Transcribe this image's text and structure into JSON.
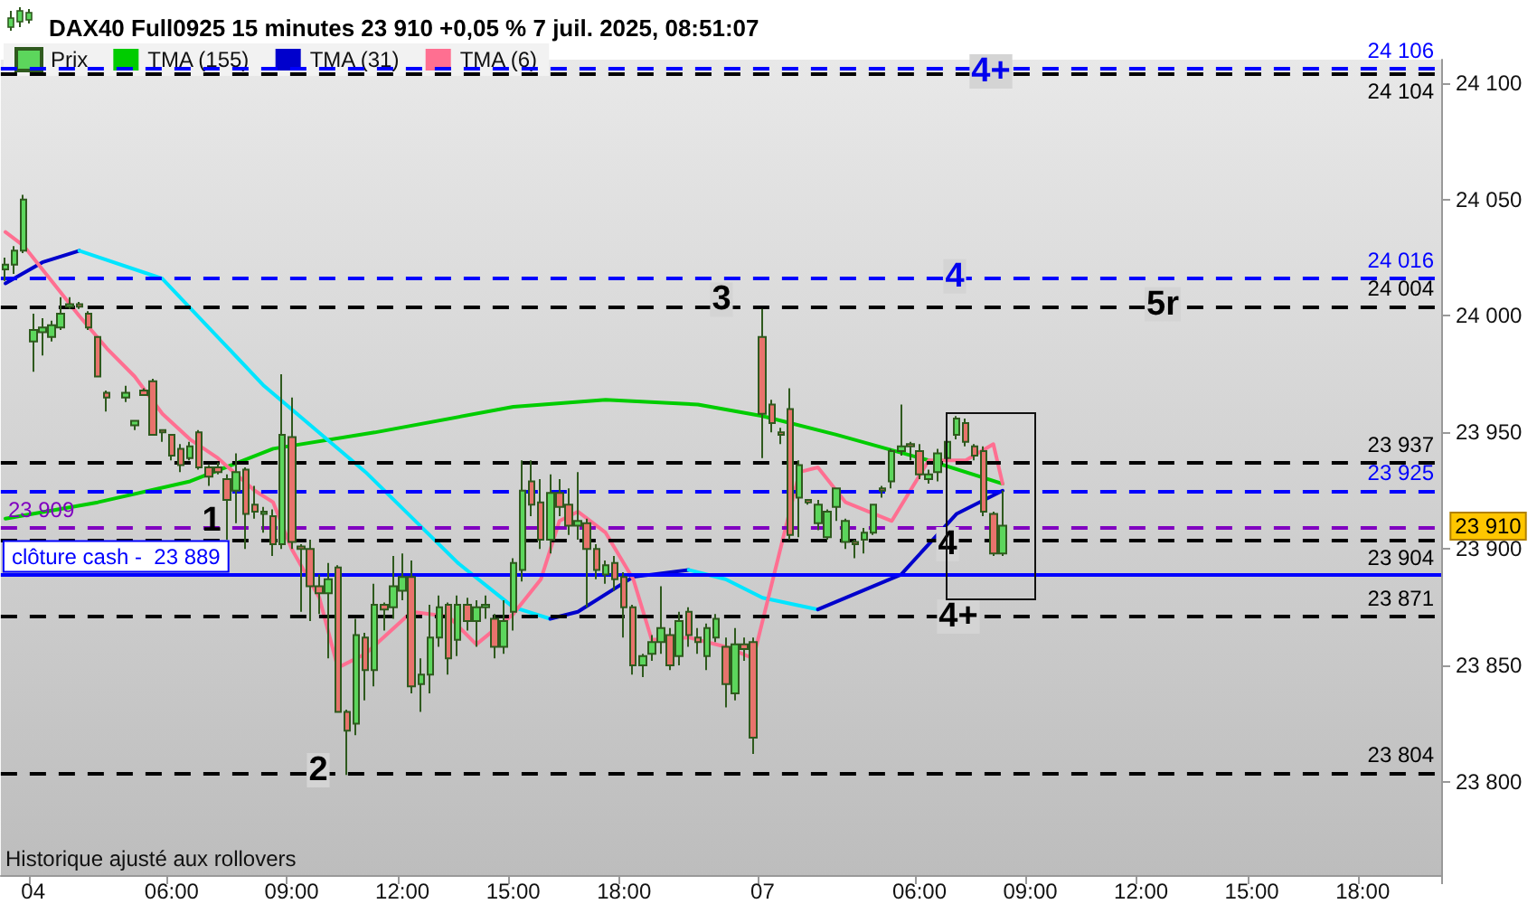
{
  "chart_data": {
    "type": "candlestick",
    "title": "DAX40 Full0925 15 minutes 23 910 +0,05 % 7 juil. 2025, 08:51:07",
    "categories": [
      null,
      null,
      null,
      "04",
      null,
      null,
      null,
      null,
      null,
      null,
      null,
      null,
      null,
      null,
      null,
      null,
      null,
      null,
      "06:00",
      null,
      null,
      null,
      null,
      null,
      null,
      null,
      null,
      null,
      null,
      null,
      null,
      "09:00",
      null,
      null,
      null,
      null,
      null,
      null,
      null,
      null,
      null,
      null,
      null,
      "12:00",
      null,
      null,
      null,
      null,
      null,
      null,
      null,
      null,
      null,
      null,
      null,
      "15:00",
      null,
      null,
      null,
      null,
      null,
      null,
      null,
      null,
      null,
      null,
      null,
      "18:00",
      null,
      null,
      null,
      null,
      null,
      null,
      null,
      null,
      null,
      null,
      null,
      null,
      null,
      null,
      "07",
      null,
      null,
      null,
      null,
      null,
      null,
      null,
      null,
      null,
      null,
      null,
      null,
      null,
      null,
      null,
      null,
      "06:00",
      null,
      null,
      null,
      null,
      null,
      null,
      null,
      null,
      null,
      null,
      null,
      "09:00",
      null,
      null,
      null,
      null,
      null,
      null,
      null,
      null,
      null,
      null,
      null,
      "12:00",
      null,
      null,
      null,
      null,
      null,
      null,
      null,
      null,
      null,
      null,
      null,
      "15:00",
      null,
      null,
      null,
      null,
      null,
      null,
      null,
      null,
      null,
      null,
      null,
      "18:00",
      null,
      null,
      null,
      null,
      null,
      null,
      null,
      null
    ],
    "series": [
      {
        "name": "Prix",
        "colors": [
          "#5cd65c",
          "#5cd65c",
          "#5cd65c",
          "#5cd65c",
          "#5cd65c",
          "#5cd65c",
          "#5cd65c",
          "#5cd65c",
          "#e8736c",
          "#e8736c",
          "#e8736c",
          "#e8736c",
          null,
          "#5cd65c",
          "#5cd65c",
          "#e8736c",
          "#e8736c",
          "#e8736c",
          "#e8736c",
          "#e8736c",
          "#5cd65c",
          "#e8736c",
          "#e8736c",
          "#e8736c",
          "#e8736c",
          "#5cd65c",
          "#e8736c",
          "#e8736c",
          "#5cd65c",
          "#e8736c",
          "#5cd65c",
          "#e8736c",
          "#e8736c",
          "#e8736c",
          "#e8736c",
          "#5cd65c",
          "#e8736c",
          "#e8736c",
          "#5cd65c",
          "#e8736c",
          "#5cd65c",
          "#e8736c",
          "#5cd65c",
          "#5cd65c",
          "#e8736c",
          "#5cd65c",
          "#5cd65c",
          "#5cd65c",
          "#e8736c",
          "#5cd65c",
          "#e8736c",
          "#5cd65c",
          "#5cd65c",
          "#e8736c",
          "#5cd65c",
          "#5cd65c",
          "#5cd65c",
          "#e8736c",
          "#e8736c",
          "#5cd65c",
          "#e8736c",
          "#e8736c",
          "#5cd65c",
          "#e8736c",
          "#e8736c",
          "#5cd65c",
          "#e8736c",
          "#e8736c",
          "#e8736c",
          "#5cd65c",
          "#5cd65c",
          "#5cd65c",
          "#e8736c",
          "#5cd65c",
          "#e8736c",
          "#e8736c",
          "#5cd65c",
          "#5cd65c",
          "#e8736c",
          "#5cd65c",
          "#e8736c",
          "#e8736c",
          "#e8736c",
          "#e8736c",
          "#e8736c",
          "#e8736c",
          "#5cd65c",
          "#e8736c",
          "#5cd65c",
          "#5cd65c",
          "#5cd65c",
          "#5cd65c",
          "#e8736c",
          "#5cd65c",
          "#5cd65c",
          "#e8736c",
          "#5cd65c",
          "#5cd65c",
          "#e8736c",
          "#e8736c",
          "#5cd65c",
          "#5cd65c",
          "#5cd65c",
          "#5cd65c",
          "#e8736c",
          "#e8736c",
          "#e8736c",
          "#e8736c",
          "#5cd65c",
          null,
          null,
          null,
          null,
          null,
          null,
          null,
          null,
          null,
          null,
          null,
          null,
          null,
          null,
          null,
          null,
          null,
          null,
          null,
          null,
          null,
          null,
          null,
          null,
          null,
          null,
          null,
          null,
          null,
          null,
          null,
          null,
          null,
          null,
          null,
          null,
          null,
          null,
          null,
          null,
          null,
          null,
          null,
          null,
          null,
          null,
          null
        ],
        "ohlc": [
          [
            24020,
            24025,
            24015,
            24022
          ],
          [
            24022,
            24030,
            24018,
            24028
          ],
          [
            24028,
            24052,
            24027,
            24050
          ],
          [
            23989,
            24001,
            23976,
            23994
          ],
          [
            23993,
            23999,
            23983,
            23995
          ],
          [
            23991,
            23998,
            23989,
            23996
          ],
          [
            23995,
            24008,
            23994,
            24001
          ],
          [
            24004,
            24008,
            24003,
            24005
          ],
          [
            24005,
            24006,
            24003,
            24004
          ],
          [
            24001,
            24002,
            23994,
            23995
          ],
          [
            23991,
            23991,
            23974,
            23974
          ],
          [
            23967,
            23968,
            23959,
            23965
          ],
          null,
          [
            23965,
            23970,
            23963,
            23967
          ],
          [
            23953,
            23955,
            23951,
            23955
          ],
          [
            23968,
            23969,
            23966,
            23966
          ],
          [
            23972,
            23973,
            23949,
            23949
          ],
          [
            23951,
            23951,
            23946,
            23950
          ],
          [
            23949,
            23949,
            23938,
            23940
          ],
          [
            23943,
            23945,
            23933,
            23936
          ],
          [
            23939,
            23946,
            23938,
            23944
          ],
          [
            23950,
            23951,
            23934,
            23935
          ],
          [
            23935,
            23936,
            23927,
            23931
          ],
          [
            23935,
            23937,
            23932,
            23933
          ],
          [
            23930,
            23932,
            23904,
            23921
          ],
          [
            23925,
            23941,
            23911,
            23933
          ],
          [
            23934,
            23935,
            23900,
            23915
          ],
          [
            23919,
            23927,
            23913,
            23916
          ],
          [
            23915,
            23918,
            23907,
            23916
          ],
          [
            23914,
            23917,
            23897,
            23902
          ],
          [
            23902,
            23975,
            23900,
            23949
          ],
          [
            23948,
            23965,
            23900,
            23903
          ],
          [
            23901,
            23902,
            23873,
            23900
          ],
          [
            23900,
            23904,
            23869,
            23884
          ],
          [
            23884,
            23889,
            23872,
            23881
          ],
          [
            23881,
            23894,
            23853,
            23887
          ],
          [
            23892,
            23893,
            23830,
            23830
          ],
          [
            23830,
            23831,
            23803,
            23822
          ],
          [
            23825,
            23870,
            23820,
            23863
          ],
          [
            23862,
            23864,
            23835,
            23848
          ],
          [
            23848,
            23885,
            23841,
            23876
          ],
          [
            23876,
            23877,
            23865,
            23874
          ],
          [
            23875,
            23897,
            23870,
            23884
          ],
          [
            23882,
            23898,
            23878,
            23888
          ],
          [
            23888,
            23895,
            23838,
            23841
          ],
          [
            23842,
            23853,
            23830,
            23846
          ],
          [
            23846,
            23876,
            23838,
            23862
          ],
          [
            23862,
            23880,
            23858,
            23875
          ],
          [
            23876,
            23877,
            23846,
            23853
          ],
          [
            23861,
            23880,
            23854,
            23876
          ],
          [
            23876,
            23879,
            23865,
            23869
          ],
          [
            23869,
            23878,
            23858,
            23875
          ],
          [
            23875,
            23880,
            23870,
            23876
          ],
          [
            23870,
            23872,
            23853,
            23858
          ],
          [
            23858,
            23878,
            23855,
            23869
          ],
          [
            23873,
            23896,
            23865,
            23894
          ],
          [
            23891,
            23938,
            23886,
            23925
          ],
          [
            23929,
            23938,
            23914,
            23919
          ],
          [
            23920,
            23930,
            23900,
            23904
          ],
          [
            23904,
            23932,
            23898,
            23924
          ],
          [
            23924,
            23930,
            23914,
            23918
          ],
          [
            23919,
            23926,
            23906,
            23910
          ],
          [
            23910,
            23933,
            23904,
            23912
          ],
          [
            23911,
            23913,
            23875,
            23900
          ],
          [
            23900,
            23902,
            23887,
            23891
          ],
          [
            23889,
            23895,
            23885,
            23893
          ],
          [
            23894,
            23897,
            23882,
            23887
          ],
          [
            23888,
            23890,
            23862,
            23875
          ],
          [
            23875,
            23876,
            23846,
            23850
          ],
          [
            23850,
            23855,
            23845,
            23854
          ],
          [
            23855,
            23863,
            23852,
            23860
          ],
          [
            23860,
            23884,
            23855,
            23866
          ],
          [
            23863,
            23866,
            23848,
            23850
          ],
          [
            23854,
            23873,
            23850,
            23869
          ],
          [
            23873,
            23875,
            23858,
            23863
          ],
          [
            23862,
            23866,
            23855,
            23860
          ],
          [
            23854,
            23868,
            23848,
            23866
          ],
          [
            23862,
            23872,
            23860,
            23870
          ],
          [
            23858,
            23862,
            23832,
            23842
          ],
          [
            23838,
            23866,
            23835,
            23859
          ],
          [
            23859,
            23862,
            23852,
            23857
          ],
          [
            23860,
            23862,
            23812,
            23819
          ],
          [
            23991,
            24003,
            23939,
            23958
          ],
          [
            23962,
            23964,
            23950,
            23954
          ],
          [
            23950,
            23952,
            23945,
            23949
          ],
          [
            23960,
            23969,
            23904,
            23906
          ],
          [
            23922,
            23938,
            23905,
            23936
          ],
          [
            23921,
            23921,
            23919,
            23920
          ],
          [
            23911,
            23921,
            23908,
            23919
          ],
          [
            23905,
            23917,
            23904,
            23916
          ],
          [
            23918,
            23926,
            23912,
            23926
          ],
          [
            23903,
            23913,
            23900,
            23912
          ],
          [
            23903,
            23904,
            23896,
            23902
          ],
          [
            23904,
            23909,
            23898,
            23907
          ],
          [
            23907,
            23919,
            23906,
            23919
          ],
          [
            23926,
            23927,
            23922,
            23925
          ],
          [
            23929,
            23943,
            23926,
            23942
          ],
          [
            23942,
            23962,
            23940,
            23944
          ],
          [
            23945,
            23946,
            23938,
            23944
          ],
          [
            23942,
            23945,
            23930,
            23932
          ],
          [
            23930,
            23934,
            23928,
            23932
          ],
          [
            23933,
            23943,
            23929,
            23941
          ],
          [
            23939,
            23948,
            23937,
            23946
          ],
          [
            23949,
            23957,
            23947,
            23956
          ],
          [
            23954,
            23956,
            23944,
            23946
          ],
          [
            23944,
            23945,
            23938,
            23940
          ],
          [
            23942,
            23944,
            23914,
            23916
          ],
          [
            23915,
            23916,
            23897,
            23898
          ],
          [
            23898,
            23925,
            23897,
            23910
          ],
          null,
          null,
          null,
          null,
          null,
          null,
          null,
          null,
          null,
          null,
          null,
          null,
          null,
          null,
          null,
          null,
          null,
          null,
          null,
          null,
          null,
          null,
          null,
          null,
          null,
          null,
          null,
          null,
          null,
          null,
          null,
          null,
          null,
          null,
          null,
          null,
          null,
          null,
          null,
          null,
          null,
          null,
          null,
          null,
          null,
          null,
          null
        ]
      },
      {
        "name": "TMA (155)",
        "type": "line",
        "color": "#00cc00",
        "values": [
          23913,
          null,
          null,
          null,
          null,
          null,
          null,
          null,
          null,
          null,
          23920,
          null,
          null,
          null,
          null,
          null,
          null,
          null,
          null,
          null,
          23929,
          null,
          null,
          null,
          null,
          null,
          null,
          null,
          null,
          23943,
          null,
          null,
          null,
          null,
          null,
          null,
          null,
          null,
          null,
          null,
          23950,
          null,
          null,
          null,
          null,
          null,
          null,
          null,
          null,
          null,
          null,
          null,
          null,
          null,
          null,
          23961,
          null,
          null,
          null,
          null,
          null,
          null,
          null,
          null,
          null,
          23964,
          null,
          null,
          null,
          null,
          null,
          null,
          null,
          null,
          null,
          23962,
          null,
          null,
          null,
          null,
          null,
          null,
          23957,
          null,
          null,
          null,
          null,
          null,
          null,
          null,
          23949,
          null,
          null,
          null,
          null,
          null,
          null,
          null,
          null,
          null,
          23938,
          null,
          null,
          null,
          null,
          null,
          null,
          null,
          23928,
          null,
          null,
          null,
          null,
          null,
          null,
          null,
          null,
          null,
          null,
          null,
          null,
          null,
          null,
          null,
          null,
          null,
          null,
          null,
          null,
          null,
          null,
          null,
          null,
          null,
          null,
          null,
          null,
          null,
          null,
          null,
          null,
          null,
          null,
          null,
          null,
          null,
          null,
          null,
          null,
          null,
          null,
          null,
          null,
          null,
          null,
          null
        ]
      },
      {
        "name": "TMA (31)",
        "type": "line",
        "color": "#0000cc",
        "values": [
          24014,
          null,
          null,
          null,
          24023,
          null,
          null,
          null,
          24028,
          null,
          null,
          null,
          null,
          null,
          null,
          null,
          null,
          null,
          null,
          null,
          null,
          null,
          null,
          null,
          null,
          null,
          null,
          null,
          null,
          null,
          null,
          null,
          null,
          null,
          null,
          null,
          null,
          null,
          null,
          null,
          null,
          null,
          null,
          null,
          null,
          null,
          null,
          null,
          null,
          null,
          null,
          null,
          null,
          null,
          null,
          null,
          null,
          null,
          null,
          null,
          null,
          null,
          null,
          null,
          null,
          null,
          null,
          null,
          null,
          null,
          null,
          null,
          null,
          null,
          null,
          null,
          null,
          null,
          null,
          null,
          null,
          null,
          null,
          null,
          null,
          null,
          null,
          null,
          null,
          null,
          null,
          null,
          null,
          null,
          null,
          null,
          null,
          null,
          null,
          null,
          null,
          null,
          null,
          null,
          null,
          null,
          null,
          null,
          null,
          null,
          null,
          null,
          null,
          null,
          null,
          null,
          null,
          null,
          null,
          null,
          null,
          null,
          null,
          null,
          null,
          null,
          null,
          null,
          null,
          null,
          null,
          null,
          null,
          null,
          null,
          null,
          null,
          null,
          null,
          null,
          null,
          null,
          null,
          null,
          null,
          null,
          null,
          null,
          null,
          null,
          null,
          null,
          null,
          null,
          null,
          null
        ]
      },
      {
        "type": "line",
        "color": "#00e5ff",
        "values": [
          null,
          null,
          null,
          null,
          null,
          null,
          null,
          null,
          24028,
          null,
          null,
          null,
          null,
          null,
          null,
          null,
          null,
          24016,
          null,
          null,
          null,
          null,
          null,
          null,
          null,
          null,
          null,
          null,
          23970,
          null,
          null,
          null,
          null,
          null,
          null,
          null,
          null,
          null,
          null,
          23933,
          null,
          null,
          null,
          null,
          null,
          null,
          null,
          null,
          null,
          23894,
          null,
          null,
          null,
          null,
          null,
          23875,
          null,
          null,
          null,
          23870,
          null,
          null,
          null,
          null,
          null,
          null,
          null,
          null,
          null,
          null,
          null,
          null,
          null,
          null,
          null,
          null,
          null,
          null,
          null,
          null,
          null,
          null,
          null,
          null,
          null,
          null,
          null,
          null,
          null,
          null,
          null,
          null,
          null,
          null,
          null,
          null,
          null,
          null,
          null,
          null,
          null,
          null,
          null,
          null,
          null,
          null,
          null,
          null,
          null,
          null,
          null,
          null,
          null,
          null,
          null,
          null,
          null,
          null,
          null,
          null,
          null,
          null,
          null,
          null,
          null,
          null,
          null,
          null,
          null,
          null,
          null,
          null,
          null,
          null,
          null,
          null,
          null,
          null,
          null,
          null,
          null,
          null,
          null,
          null,
          null,
          null,
          null,
          null,
          null,
          null,
          null,
          null,
          null,
          null,
          null,
          null
        ]
      },
      {
        "type": "line",
        "color": "#0000cc",
        "values": [
          null,
          null,
          null,
          null,
          null,
          null,
          null,
          null,
          null,
          null,
          null,
          null,
          null,
          null,
          null,
          null,
          null,
          null,
          null,
          null,
          null,
          null,
          null,
          null,
          null,
          null,
          null,
          null,
          null,
          null,
          null,
          null,
          null,
          null,
          null,
          null,
          null,
          null,
          null,
          null,
          null,
          null,
          null,
          null,
          null,
          null,
          null,
          null,
          null,
          null,
          null,
          null,
          null,
          null,
          null,
          null,
          null,
          null,
          null,
          23870,
          null,
          null,
          23873,
          null,
          null,
          null,
          null,
          null,
          23888,
          null,
          null,
          null,
          null,
          null,
          23891,
          null,
          null,
          null,
          null,
          null,
          null,
          null,
          null,
          null,
          null,
          null,
          null,
          null,
          null,
          null,
          null,
          null,
          null,
          null,
          null,
          null,
          null,
          null,
          null,
          null,
          null,
          null,
          null,
          null,
          null,
          null,
          null,
          null,
          null,
          null,
          null,
          null,
          null,
          null,
          null,
          null,
          null,
          null,
          null,
          null,
          null,
          null,
          null,
          null,
          null,
          null,
          null,
          null,
          null,
          null,
          null,
          null,
          null,
          null,
          null,
          null,
          null,
          null,
          null,
          null,
          null,
          null,
          null,
          null,
          null,
          null,
          null,
          null,
          null,
          null,
          null,
          null,
          null,
          null,
          null,
          null
        ]
      },
      {
        "type": "line",
        "color": "#00e5ff",
        "values": [
          null,
          null,
          null,
          null,
          null,
          null,
          null,
          null,
          null,
          null,
          null,
          null,
          null,
          null,
          null,
          null,
          null,
          null,
          null,
          null,
          null,
          null,
          null,
          null,
          null,
          null,
          null,
          null,
          null,
          null,
          null,
          null,
          null,
          null,
          null,
          null,
          null,
          null,
          null,
          null,
          null,
          null,
          null,
          null,
          null,
          null,
          null,
          null,
          null,
          null,
          null,
          null,
          null,
          null,
          null,
          null,
          null,
          null,
          null,
          null,
          null,
          null,
          null,
          null,
          null,
          null,
          null,
          null,
          null,
          null,
          null,
          null,
          null,
          null,
          23891,
          null,
          null,
          null,
          23887,
          null,
          null,
          null,
          23879,
          null,
          null,
          null,
          null,
          null,
          23874,
          null,
          null,
          null,
          null,
          null,
          null,
          null,
          null,
          null,
          null,
          null,
          null,
          null,
          null,
          null,
          null,
          null,
          null,
          null,
          null,
          null,
          null,
          null,
          null,
          null,
          null,
          null,
          null,
          null,
          null,
          null,
          null,
          null,
          null,
          null,
          null,
          null,
          null,
          null,
          null,
          null,
          null,
          null,
          null,
          null,
          null,
          null,
          null,
          null,
          null,
          null,
          null,
          null,
          null,
          null,
          null,
          null,
          null,
          null,
          null,
          null,
          null,
          null,
          null,
          null,
          null,
          null
        ]
      },
      {
        "type": "line",
        "color": "#0000cc",
        "values": [
          null,
          null,
          null,
          null,
          null,
          null,
          null,
          null,
          null,
          null,
          null,
          null,
          null,
          null,
          null,
          null,
          null,
          null,
          null,
          null,
          null,
          null,
          null,
          null,
          null,
          null,
          null,
          null,
          null,
          null,
          null,
          null,
          null,
          null,
          null,
          null,
          null,
          null,
          null,
          null,
          null,
          null,
          null,
          null,
          null,
          null,
          null,
          null,
          null,
          null,
          null,
          null,
          null,
          null,
          null,
          null,
          null,
          null,
          null,
          null,
          null,
          null,
          null,
          null,
          null,
          null,
          null,
          null,
          null,
          null,
          null,
          null,
          null,
          null,
          null,
          null,
          null,
          null,
          null,
          null,
          null,
          null,
          null,
          null,
          null,
          null,
          null,
          null,
          23874,
          null,
          null,
          null,
          null,
          null,
          null,
          null,
          null,
          23889,
          null,
          null,
          null,
          null,
          null,
          23915,
          null,
          null,
          null,
          null,
          23925,
          null,
          null,
          null,
          null,
          null,
          null,
          null,
          null,
          null,
          null,
          null,
          null,
          null,
          null,
          null,
          null,
          null,
          null,
          null,
          null,
          null,
          null,
          null,
          null,
          null,
          null,
          null,
          null,
          null,
          null,
          null,
          null,
          null,
          null,
          null,
          null,
          null,
          null,
          null,
          null,
          null,
          null,
          null,
          null,
          null,
          null,
          null
        ]
      },
      {
        "name": "TMA (6)",
        "type": "line",
        "color": "#ff6f91",
        "values": [
          24036,
          null,
          24030,
          null,
          null,
          24015,
          null,
          null,
          24000,
          null,
          null,
          23986,
          null,
          null,
          23974,
          null,
          null,
          23958,
          null,
          null,
          23947,
          null,
          null,
          23939,
          null,
          null,
          null,
          23925,
          null,
          23920,
          null,
          23900,
          null,
          null,
          23879,
          null,
          23849,
          null,
          null,
          23855,
          null,
          null,
          null,
          null,
          23873,
          null,
          null,
          null,
          23871,
          null,
          null,
          23859,
          null,
          null,
          null,
          23872,
          null,
          null,
          23887,
          null,
          23912,
          null,
          23916,
          null,
          null,
          23907,
          null,
          null,
          23887,
          null,
          23861,
          null,
          null,
          null,
          23862,
          null,
          null,
          null,
          23858,
          null,
          null,
          23853,
          null,
          null,
          null,
          null,
          23933,
          null,
          23935,
          null,
          null,
          23920,
          null,
          null,
          null,
          null,
          23912,
          null,
          null,
          null,
          23938,
          null,
          null,
          null,
          23938,
          null,
          null,
          23945,
          23928,
          null,
          null,
          null,
          null,
          null,
          null,
          null,
          null,
          null,
          null,
          null,
          null,
          null,
          null,
          null,
          null,
          null,
          null,
          null,
          null,
          null,
          null,
          null,
          null,
          null,
          null,
          null,
          null,
          null,
          null,
          null,
          null,
          null,
          null,
          null,
          null,
          null,
          null,
          null,
          null,
          null,
          null,
          null,
          null,
          null,
          null,
          null
        ]
      }
    ],
    "ylim": [
      23760,
      24110
    ],
    "yticks": [
      {
        "value": 23800,
        "label": "23 800"
      },
      {
        "value": 23850,
        "label": "23 850"
      },
      {
        "value": 23900,
        "label": "23 900"
      },
      {
        "value": 23950,
        "label": "23 950"
      },
      {
        "value": 24000,
        "label": "24 000"
      },
      {
        "value": 24050,
        "label": "24 050"
      },
      {
        "value": 24100,
        "label": "24 100"
      }
    ],
    "ref_lines": [
      {
        "axis": "y",
        "value": 24106,
        "label": "24 106",
        "color": "#0000ff",
        "line_style": "dashed"
      },
      {
        "axis": "y",
        "value": 24104,
        "label": "24 104",
        "color": "#000000",
        "line_style": "dashed"
      },
      {
        "axis": "y",
        "value": 24016,
        "label": "24 016",
        "color": "#0000ff",
        "line_style": "dashed"
      },
      {
        "axis": "y",
        "value": 24004,
        "label": "24 004",
        "color": "#000000",
        "line_style": "dashed"
      },
      {
        "axis": "y",
        "value": 23937,
        "label": "23 937",
        "color": "#000000",
        "line_style": "dashed"
      },
      {
        "axis": "y",
        "value": 23925,
        "label": "23 925",
        "color": "#0000ff",
        "line_style": "dashed"
      },
      {
        "axis": "y",
        "value": 23909,
        "label": "23 909",
        "color": "#8000c0",
        "line_style": "dashed"
      },
      {
        "axis": "y",
        "value": 23904,
        "label": "23 904",
        "color": "#000000",
        "line_style": "dashed"
      },
      {
        "axis": "y",
        "value": 23889,
        "label": "clôture cash -  23 889",
        "color": "#0000ff",
        "line_style": "solid"
      },
      {
        "axis": "y",
        "value": 23871,
        "label": "23 871",
        "color": "#000000",
        "line_style": "dashed"
      },
      {
        "axis": "y",
        "value": 23804,
        "label": "23 804",
        "color": "#000000",
        "line_style": "dashed"
      }
    ],
    "annotations": [
      {
        "text": "4+",
        "y": 24105
      },
      {
        "text": "4",
        "y": 24017
      },
      {
        "text": "3",
        "y": 24007
      },
      {
        "text": "5r",
        "y": 24005
      },
      {
        "text": "1",
        "y": 23912
      },
      {
        "text": "2",
        "y": 23805
      },
      {
        "text": "4",
        "y": 23902
      },
      {
        "text": "4+",
        "y": 23871
      },
      "23 910",
      "Historique ajusté aux rollovers"
    ],
    "legend": "top left"
  }
}
